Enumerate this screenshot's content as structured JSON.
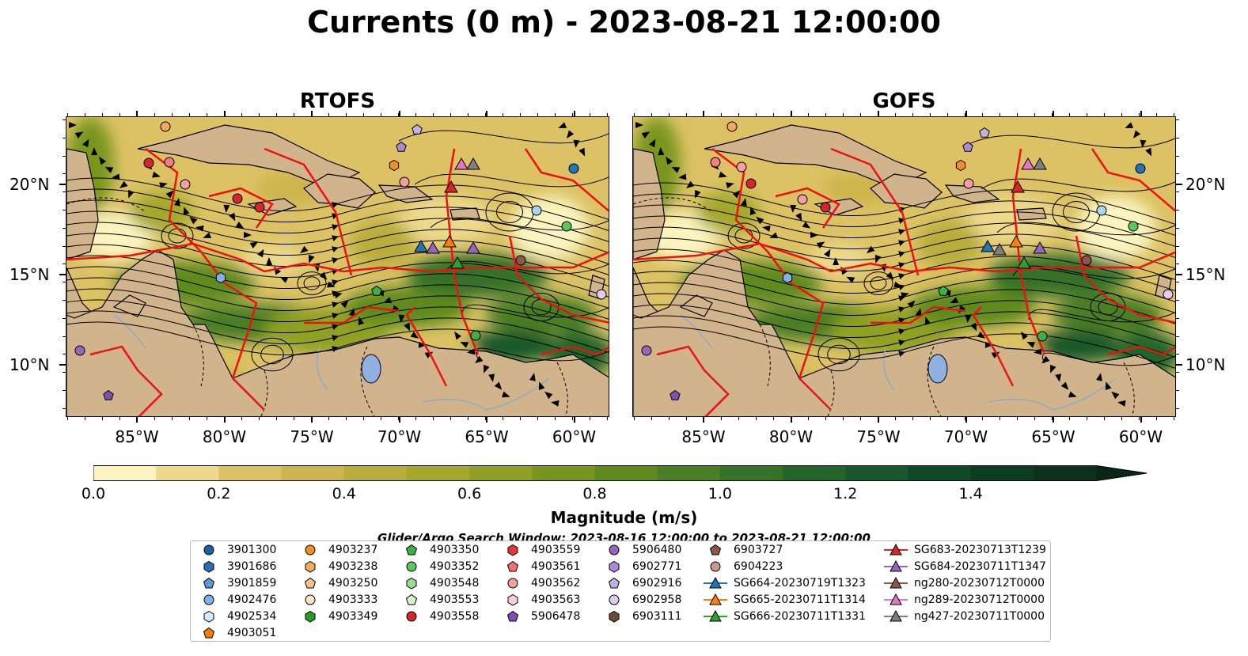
{
  "title": "Currents (0 m) - 2023-08-21 12:00:00",
  "panels": [
    {
      "title": "RTOFS"
    },
    {
      "title": "GOFS"
    }
  ],
  "axes": {
    "x_labels": [
      "85°W",
      "80°W",
      "75°W",
      "70°W",
      "65°W",
      "60°W"
    ],
    "y_labels": [
      "20°N",
      "15°N",
      "10°N"
    ]
  },
  "colorbar": {
    "title": "Magnitude (m/s)",
    "tick_labels": [
      "0.0",
      "0.2",
      "0.4",
      "0.6",
      "0.8",
      "1.0",
      "1.2",
      "1.4"
    ],
    "colors": [
      "#fbf4c0",
      "#ecd98c",
      "#dcc264",
      "#cdb44c",
      "#b8ad3a",
      "#a4a82c",
      "#8fa022",
      "#78961e",
      "#5f8a1e",
      "#4a7e22",
      "#357126",
      "#22652a",
      "#16582b",
      "#0f4a28",
      "#0c3d22",
      "#0b301c",
      "#0a2616"
    ]
  },
  "search_window": "Glider/Argo Search Window: 2023-08-16 12:00:00 to 2023-08-21 12:00:00",
  "legend": [
    {
      "label": "3901300",
      "marker": "circle",
      "color": "#1f5f9f"
    },
    {
      "label": "3901686",
      "marker": "hexagon",
      "color": "#2b6fb0"
    },
    {
      "label": "3901859",
      "marker": "pentagon",
      "color": "#5b9bd5"
    },
    {
      "label": "4902476",
      "marker": "circle",
      "color": "#7fb2e5"
    },
    {
      "label": "4902534",
      "marker": "hexagon",
      "color": "#d6e9f8"
    },
    {
      "label": "4903051",
      "marker": "pentagon",
      "color": "#f07f0a"
    },
    {
      "label": "4903237",
      "marker": "circle",
      "color": "#f0901e"
    },
    {
      "label": "4903238",
      "marker": "hexagon",
      "color": "#f5a95a"
    },
    {
      "label": "4903250",
      "marker": "pentagon",
      "color": "#f8c28c"
    },
    {
      "label": "4903333",
      "marker": "circle",
      "color": "#fde3c4"
    },
    {
      "label": "4903349",
      "marker": "hexagon",
      "color": "#2a9a2a"
    },
    {
      "label": "4903350",
      "marker": "pentagon",
      "color": "#3cb043"
    },
    {
      "label": "4903352",
      "marker": "circle",
      "color": "#5cc85c"
    },
    {
      "label": "4903548",
      "marker": "hexagon",
      "color": "#98df8a"
    },
    {
      "label": "4903553",
      "marker": "pentagon",
      "color": "#d4f4cc"
    },
    {
      "label": "4903558",
      "marker": "circle",
      "color": "#d62728"
    },
    {
      "label": "4903559",
      "marker": "hexagon",
      "color": "#e0393b"
    },
    {
      "label": "4903561",
      "marker": "pentagon",
      "color": "#f07070"
    },
    {
      "label": "4903562",
      "marker": "circle",
      "color": "#f4a0a0"
    },
    {
      "label": "4903563",
      "marker": "hexagon",
      "color": "#fbd0cf"
    },
    {
      "label": "5906478",
      "marker": "pentagon",
      "color": "#7b52b0"
    },
    {
      "label": "5906480",
      "marker": "circle",
      "color": "#9467bd"
    },
    {
      "label": "6902771",
      "marker": "hexagon",
      "color": "#a98bd3"
    },
    {
      "label": "6902916",
      "marker": "pentagon",
      "color": "#c5b0e6"
    },
    {
      "label": "6902958",
      "marker": "circle",
      "color": "#e0ccf2"
    },
    {
      "label": "6903111",
      "marker": "hexagon",
      "color": "#6e4a3a"
    },
    {
      "label": "6903727",
      "marker": "pentagon",
      "color": "#8c564b"
    },
    {
      "label": "6904223",
      "marker": "circle",
      "color": "#c49c94"
    },
    {
      "label": "SG664-20230719T1323",
      "marker": "triangle",
      "color": "#1f77b4"
    },
    {
      "label": "SG665-20230711T1314",
      "marker": "triangle",
      "color": "#ff7f0e"
    },
    {
      "label": "SG666-20230711T1331",
      "marker": "triangle",
      "color": "#2ca02c"
    },
    {
      "label": "SG683-20230713T1239",
      "marker": "triangle",
      "color": "#d62728"
    },
    {
      "label": "SG684-20230711T1347",
      "marker": "triangle",
      "color": "#9467bd"
    },
    {
      "label": "ng280-20230712T0000",
      "marker": "triangle",
      "color": "#8c564b"
    },
    {
      "label": "ng289-20230712T0000",
      "marker": "triangle",
      "color": "#e377c2"
    },
    {
      "label": "ng427-20230711T0000",
      "marker": "triangle",
      "color": "#7f7f7f"
    }
  ]
}
